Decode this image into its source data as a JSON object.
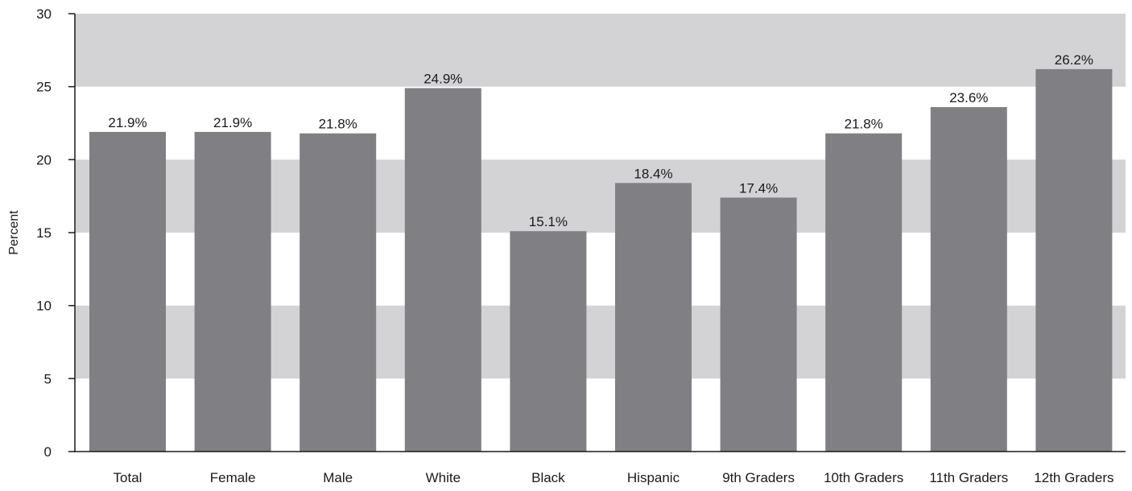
{
  "chart_data": {
    "type": "bar",
    "title": "",
    "xlabel": "",
    "ylabel": "Percent",
    "ylim": [
      0,
      30
    ],
    "yticks": [
      0,
      5,
      10,
      15,
      20,
      25,
      30
    ],
    "categories": [
      "Total",
      "Female",
      "Male",
      "White",
      "Black",
      "Hispanic",
      "9th Graders",
      "10th Graders",
      "11th Graders",
      "12th Graders"
    ],
    "values": [
      21.9,
      21.9,
      21.8,
      24.9,
      15.1,
      18.4,
      17.4,
      21.8,
      23.6,
      26.2
    ],
    "data_labels": [
      "21.9%",
      "21.9%",
      "21.8%",
      "24.9%",
      "15.1%",
      "18.4%",
      "17.4%",
      "21.8%",
      "23.6%",
      "26.2%"
    ],
    "grid": "alternating horizontal bands",
    "legend": "none",
    "colors": {
      "bar": "#808084",
      "band": "#d3d3d5",
      "axis": "#1a1a1a",
      "text": "#1a1a1a"
    }
  }
}
